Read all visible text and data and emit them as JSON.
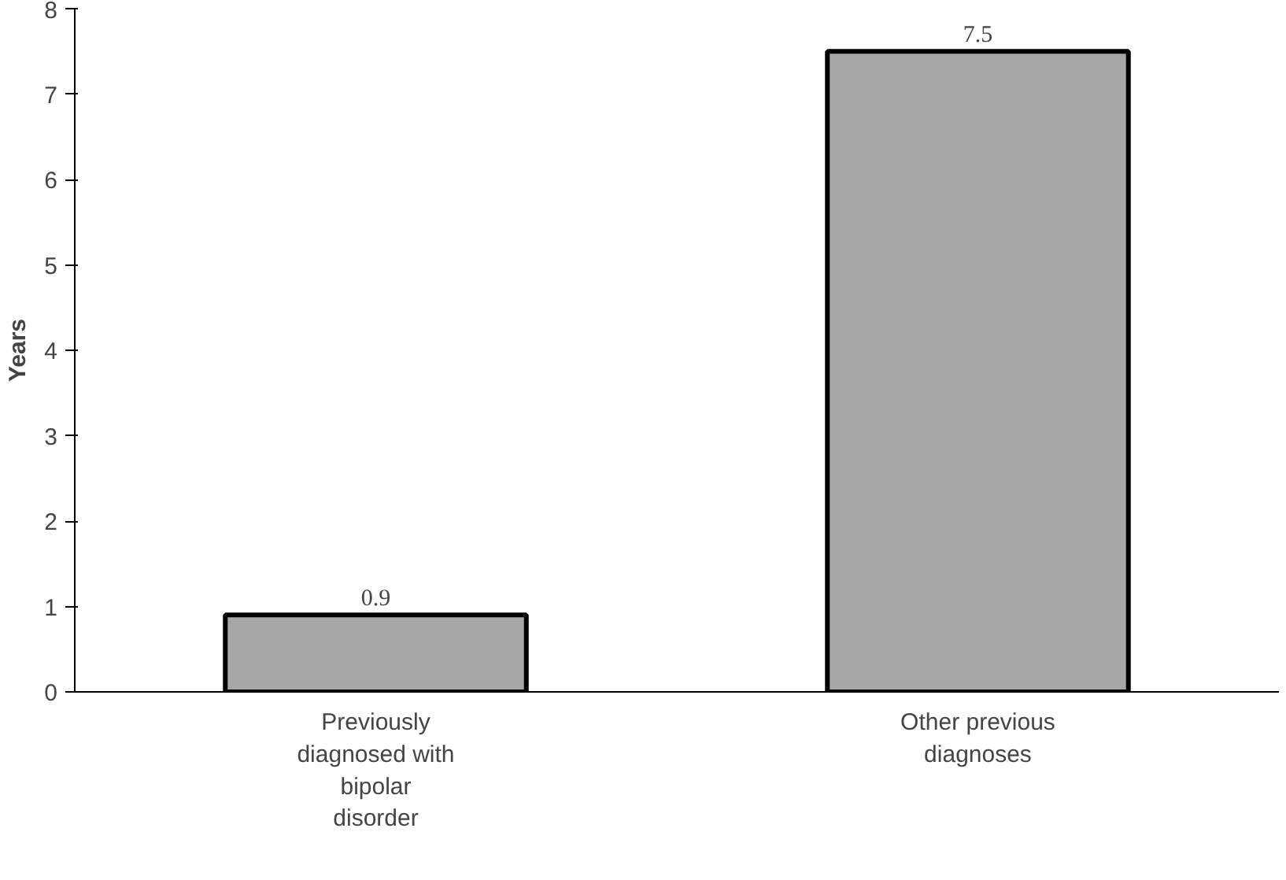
{
  "chart_data": {
    "type": "bar",
    "ylabel": "Years",
    "categories": [
      "Previously diagnosed with bipolar disorder",
      "Other previous diagnoses"
    ],
    "values": [
      0.9,
      7.5
    ],
    "color": "#a6a6a6",
    "ylim": [
      0,
      8
    ],
    "yticks": [
      0,
      1,
      2,
      3,
      4,
      5,
      6,
      7,
      8
    ],
    "grid": false,
    "data_labels": true
  }
}
